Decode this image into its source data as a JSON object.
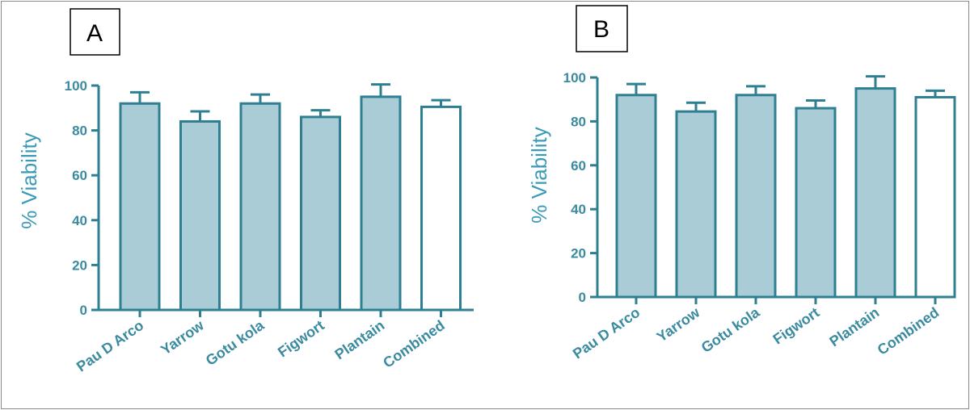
{
  "chart_data": [
    {
      "type": "bar",
      "panel_label": "A",
      "categories": [
        "Pau D Arco",
        "Yarrow",
        "Gotu kola",
        "Figwort",
        "Plantain",
        "Combined"
      ],
      "values": [
        92,
        84,
        92,
        86,
        95,
        90.5
      ],
      "errors": [
        5,
        4.5,
        4,
        3,
        5.5,
        3
      ],
      "ylabel": "% Viability",
      "xlabel": "",
      "title": "",
      "ylim": [
        0,
        100
      ],
      "yticks": [
        "0",
        "20",
        "40",
        "60",
        "80",
        "100"
      ],
      "grid": false,
      "legend": "none",
      "colors": {
        "bar": "#a9ccd6",
        "highlight_bar": "#ffffff",
        "stroke": "#2f7f93",
        "text": "#3a8aa0"
      },
      "highlight_index": 5
    },
    {
      "type": "bar",
      "panel_label": "B",
      "categories": [
        "Pau D Arco",
        "Yarrow",
        "Gotu kola",
        "Figwort",
        "Plantain",
        "Combined"
      ],
      "values": [
        92,
        84.5,
        92,
        86,
        95,
        91
      ],
      "errors": [
        5,
        4,
        4,
        3.5,
        5.5,
        3
      ],
      "ylabel": "% Viability",
      "xlabel": "",
      "title": "",
      "ylim": [
        0,
        100
      ],
      "yticks": [
        "0",
        "20",
        "40",
        "60",
        "80",
        "100"
      ],
      "grid": false,
      "legend": "none",
      "colors": {
        "bar": "#a9ccd6",
        "highlight_bar": "#ffffff",
        "stroke": "#2f7f93",
        "text": "#3a8aa0"
      },
      "highlight_index": 5
    }
  ]
}
